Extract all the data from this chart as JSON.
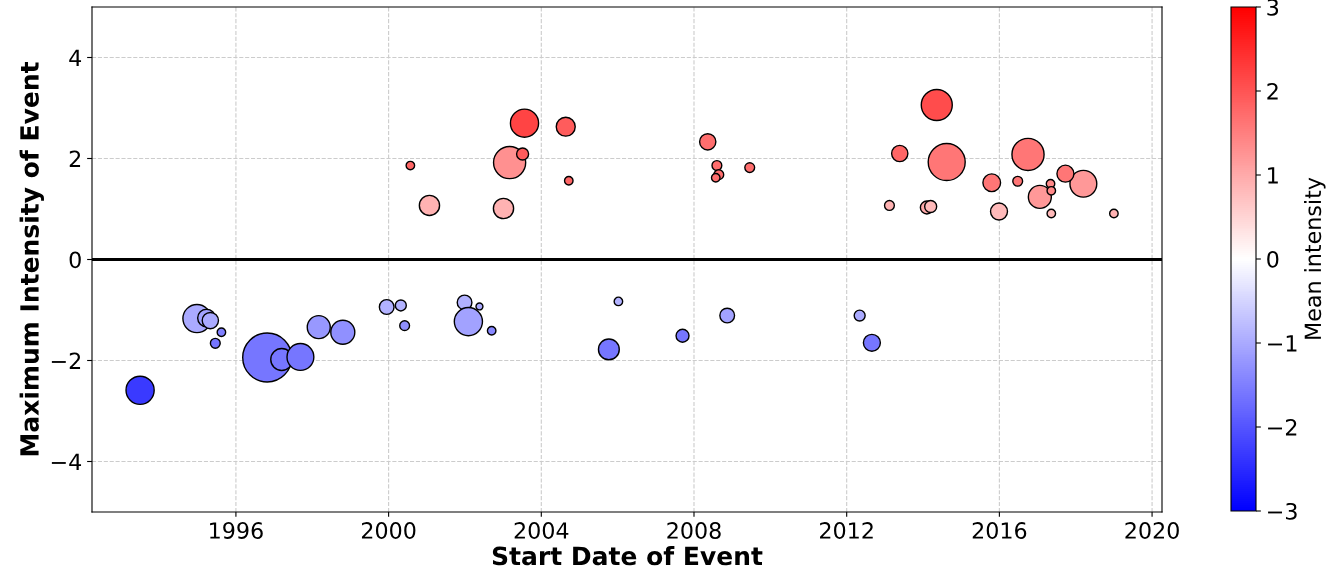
{
  "chart_data": {
    "type": "bubble",
    "xlabel": "Start Date of Event",
    "ylabel": "Maximum Intensity of Event",
    "clabel": "Mean intensity",
    "x": [
      2000.57,
      2001.07,
      2003.17,
      2003.01,
      2003.56,
      2003.51,
      2004.64,
      2004.72,
      2008.36,
      2008.6,
      2008.65,
      2008.57,
      2009.46,
      2014.36,
      2013.39,
      2014.62,
      2016.75,
      2015.8,
      2017.06,
      2018.2,
      2017.73,
      2017.34,
      2017.36,
      2017.36,
      2015.99,
      2013.12,
      2014.1,
      2014.2,
      2019.0,
      2016.48,
      1993.49,
      1994.98,
      1995.23,
      1995.33,
      1995.46,
      1995.62,
      1996.82,
      1997.2,
      1997.69,
      1998.17,
      1998.8,
      1999.95,
      2000.32,
      2000.42,
      2001.99,
      2002.09,
      2002.38,
      2002.7,
      2005.77,
      2006.02,
      2007.7,
      2008.87,
      2012.34,
      2012.66
    ],
    "values": [
      1.86,
      1.07,
      1.92,
      1.01,
      2.7,
      2.09,
      2.63,
      1.56,
      2.33,
      1.86,
      1.68,
      1.62,
      1.82,
      3.06,
      2.1,
      1.93,
      2.08,
      1.52,
      1.24,
      1.5,
      1.7,
      1.5,
      1.36,
      0.91,
      0.95,
      1.07,
      1.03,
      1.05,
      0.91,
      1.55,
      -2.59,
      -1.17,
      -1.16,
      -1.21,
      -1.66,
      -1.44,
      -1.94,
      -1.98,
      -1.93,
      -1.34,
      -1.44,
      -0.94,
      -0.91,
      -1.31,
      -0.85,
      -1.23,
      -0.93,
      -1.41,
      -1.78,
      -0.83,
      -1.51,
      -1.11,
      -1.11,
      -1.65
    ],
    "sizes": [
      0.03,
      0.17,
      0.43,
      0.17,
      0.33,
      0.06,
      0.15,
      0.03,
      0.11,
      0.04,
      0.04,
      0.03,
      0.04,
      0.4,
      0.11,
      0.57,
      0.43,
      0.13,
      0.22,
      0.3,
      0.12,
      0.03,
      0.03,
      0.03,
      0.12,
      0.04,
      0.07,
      0.06,
      0.03,
      0.04,
      0.33,
      0.33,
      0.13,
      0.11,
      0.04,
      0.03,
      1,
      0.2,
      0.3,
      0.22,
      0.24,
      0.09,
      0.05,
      0.04,
      0.09,
      0.33,
      0.02,
      0.03,
      0.18,
      0.03,
      0.07,
      0.09,
      0.05,
      0.12
    ],
    "cvalues": [
      1.8,
      0.9,
      1.3,
      0.9,
      2.2,
      1.9,
      1.9,
      1.8,
      1.7,
      1.7,
      1.7,
      1.7,
      1.7,
      2.1,
      1.8,
      1.6,
      1.6,
      1.6,
      1.2,
      1.2,
      1.6,
      1.4,
      1.4,
      0.8,
      0.8,
      0.9,
      1.0,
      0.8,
      0.9,
      1.6,
      -2.3,
      -1.0,
      -1.1,
      -1.0,
      -1.6,
      -1.5,
      -1.6,
      -1.6,
      -1.6,
      -1.2,
      -1.3,
      -0.9,
      -0.9,
      -1.3,
      -0.9,
      -1.1,
      -1.0,
      -1.4,
      -1.6,
      -0.9,
      -1.6,
      -1.1,
      -1.0,
      -1.6
    ],
    "xlim": [
      1992.23,
      2020.26
    ],
    "xticks": [
      1996,
      2000,
      2004,
      2008,
      2012,
      2016,
      2020
    ],
    "ylim": [
      -5,
      5
    ],
    "yticks": [
      -4,
      -2,
      0,
      2,
      4
    ],
    "clim": [
      -3,
      3
    ],
    "cticks": [
      -3,
      -2,
      -1,
      0,
      1,
      2,
      3
    ],
    "ref_lines": [
      {
        "axis": "y",
        "value": 0,
        "color": "#000000"
      }
    ],
    "grid": true
  }
}
